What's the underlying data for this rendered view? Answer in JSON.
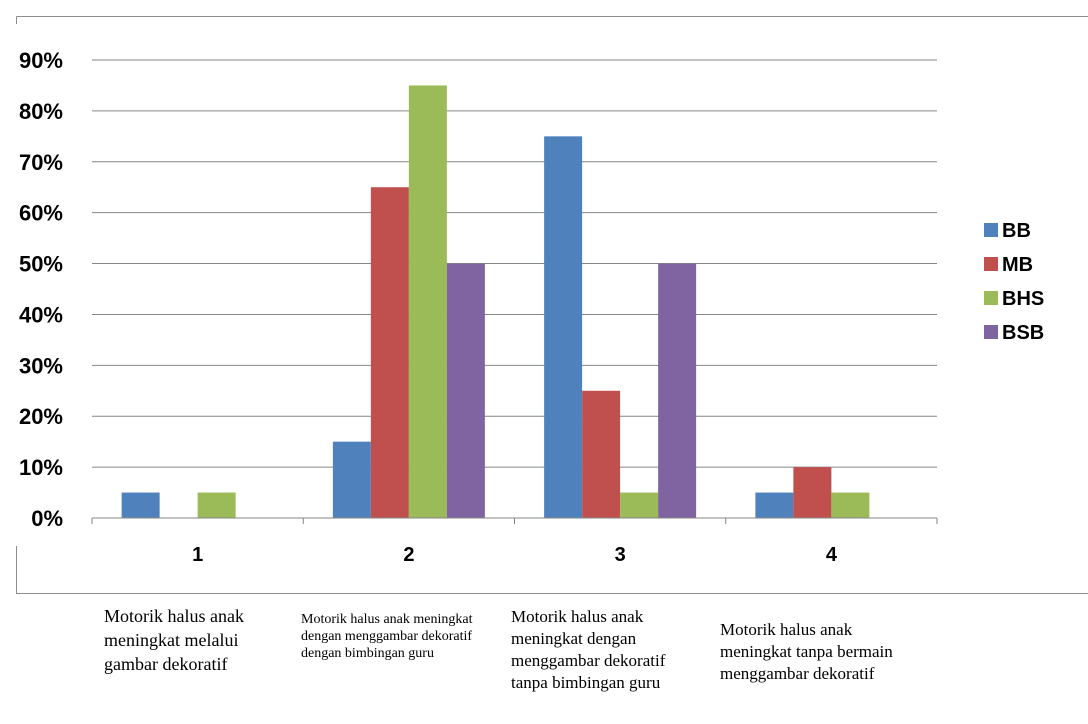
{
  "chart_data": {
    "type": "bar",
    "categories": [
      "1",
      "2",
      "3",
      "4"
    ],
    "series": [
      {
        "name": "BB",
        "color": "#4F81BD",
        "values": [
          5,
          15,
          75,
          5
        ]
      },
      {
        "name": "MB",
        "color": "#C0504D",
        "values": [
          0,
          65,
          25,
          10
        ]
      },
      {
        "name": "BHS",
        "color": "#9BBB59",
        "values": [
          5,
          85,
          5,
          5
        ]
      },
      {
        "name": "BSB",
        "color": "#8064A2",
        "values": [
          0,
          50,
          50,
          0
        ]
      }
    ],
    "yticks": [
      "0%",
      "10%",
      "20%",
      "30%",
      "40%",
      "50%",
      "60%",
      "70%",
      "80%",
      "90%"
    ],
    "ylim": [
      0,
      90
    ],
    "grid": true,
    "legend": "right",
    "title": "",
    "xlabel": "",
    "ylabel": ""
  },
  "captions": [
    "Motorik halus anak meningkat melalui gambar dekoratif",
    "Motorik halus anak meningkat dengan menggambar dekoratif dengan bimbingan guru",
    "Motorik halus anak meningkat dengan menggambar dekoratif tanpa bimbingan guru",
    "Motorik halus anak meningkat tanpa bermain menggambar dekoratif"
  ]
}
